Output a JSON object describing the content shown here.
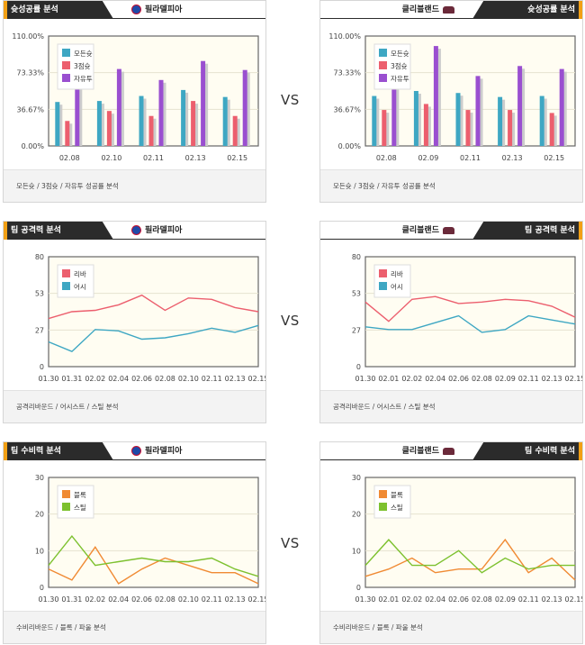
{
  "vs_label": "VS",
  "panels": [
    {
      "title": "슛성공률 분석",
      "team": "필라델피아",
      "side": "left",
      "team_logo": "76ers-logo",
      "footer": "모든슛 / 3점슛 / 자유투 성공률 분석",
      "chart_data": {
        "type": "bar",
        "categories": [
          "02.08",
          "02.10",
          "02.11",
          "02.13",
          "02.15"
        ],
        "ylim": [
          0,
          110
        ],
        "yticks": [
          "0.00%",
          "36.67%",
          "73.33%",
          "110.00%"
        ],
        "series": [
          {
            "name": "모든슛",
            "color": "#3ea7c3",
            "values": [
              44,
              45,
              50,
              56,
              49
            ]
          },
          {
            "name": "3점슛",
            "color": "#ec5f6e",
            "values": [
              25,
              35,
              30,
              45,
              30
            ]
          },
          {
            "name": "자유투",
            "color": "#9a4fd0",
            "values": [
              63,
              77,
              66,
              85,
              76
            ]
          }
        ]
      }
    },
    {
      "title": "슛성공률 분석",
      "team": "클리블랜드",
      "side": "right",
      "team_logo": "cavaliers-logo",
      "footer": "모든슛 / 3점슛 / 자유투 성공률 분석",
      "chart_data": {
        "type": "bar",
        "categories": [
          "02.08",
          "02.09",
          "02.11",
          "02.13",
          "02.15"
        ],
        "ylim": [
          0,
          110
        ],
        "yticks": [
          "0.00%",
          "36.67%",
          "73.33%",
          "110.00%"
        ],
        "series": [
          {
            "name": "모든슛",
            "color": "#3ea7c3",
            "values": [
              50,
              55,
              53,
              49,
              50
            ]
          },
          {
            "name": "3점슛",
            "color": "#ec5f6e",
            "values": [
              36,
              42,
              36,
              36,
              33
            ]
          },
          {
            "name": "자유투",
            "color": "#9a4fd0",
            "values": [
              65,
              100,
              70,
              80,
              77
            ]
          }
        ]
      }
    },
    {
      "title": "팀 공격력 분석",
      "team": "필라델피아",
      "side": "left",
      "team_logo": "76ers-logo",
      "footer": "공격리바운드 / 어시스트 / 스틸 분석",
      "chart_data": {
        "type": "line",
        "categories": [
          "01.30",
          "01.31",
          "02.02",
          "02.04",
          "02.06",
          "02.08",
          "02.10",
          "02.11",
          "02.13",
          "02.15"
        ],
        "ylim": [
          0,
          80
        ],
        "yticks": [
          "0",
          "27",
          "53",
          "80"
        ],
        "series": [
          {
            "name": "리바",
            "color": "#ec5f6e",
            "values": [
              35,
              40,
              41,
              45,
              52,
              41,
              50,
              49,
              43,
              40
            ]
          },
          {
            "name": "어시",
            "color": "#3ea7c3",
            "values": [
              18,
              11,
              27,
              26,
              20,
              21,
              24,
              28,
              25,
              30
            ]
          }
        ]
      }
    },
    {
      "title": "팀 공격력 분석",
      "team": "클리블랜드",
      "side": "right",
      "team_logo": "cavaliers-logo",
      "footer": "공격리바운드 / 어시스트 / 스틸 분석",
      "chart_data": {
        "type": "line",
        "categories": [
          "01.30",
          "02.01",
          "02.02",
          "02.04",
          "02.06",
          "02.08",
          "02.09",
          "02.11",
          "02.13",
          "02.15"
        ],
        "ylim": [
          0,
          80
        ],
        "yticks": [
          "0",
          "27",
          "53",
          "80"
        ],
        "series": [
          {
            "name": "리바",
            "color": "#ec5f6e",
            "values": [
              47,
              33,
              49,
              51,
              46,
              47,
              49,
              48,
              44,
              36
            ]
          },
          {
            "name": "어시",
            "color": "#3ea7c3",
            "values": [
              29,
              27,
              27,
              32,
              37,
              25,
              27,
              37,
              34,
              31
            ]
          }
        ]
      }
    },
    {
      "title": "팀 수비력 분석",
      "team": "필라델피아",
      "side": "left",
      "team_logo": "76ers-logo",
      "footer": "수비리바운드 / 블록 / 파울 분석",
      "chart_data": {
        "type": "line",
        "categories": [
          "01.30",
          "01.31",
          "02.02",
          "02.04",
          "02.06",
          "02.08",
          "02.10",
          "02.11",
          "02.13",
          "02.15"
        ],
        "ylim": [
          0,
          30
        ],
        "yticks": [
          "0",
          "10",
          "20",
          "30"
        ],
        "series": [
          {
            "name": "블록",
            "color": "#f08a33",
            "values": [
              5,
              2,
              11,
              1,
              5,
              8,
              6,
              4,
              4,
              1
            ]
          },
          {
            "name": "스틸",
            "color": "#7dc12f",
            "values": [
              6,
              14,
              6,
              7,
              8,
              7,
              7,
              8,
              5,
              3
            ]
          }
        ]
      }
    },
    {
      "title": "팀 수비력 분석",
      "team": "클리블랜드",
      "side": "right",
      "team_logo": "cavaliers-logo",
      "footer": "수비리바운드 / 블록 / 파울 분석",
      "chart_data": {
        "type": "line",
        "categories": [
          "01.30",
          "02.01",
          "02.02",
          "02.04",
          "02.06",
          "02.08",
          "02.09",
          "02.11",
          "02.13",
          "02.15"
        ],
        "ylim": [
          0,
          30
        ],
        "yticks": [
          "0",
          "10",
          "20",
          "30"
        ],
        "series": [
          {
            "name": "블록",
            "color": "#f08a33",
            "values": [
              3,
              5,
              8,
              4,
              5,
              5,
              13,
              4,
              8,
              2
            ]
          },
          {
            "name": "스틸",
            "color": "#7dc12f",
            "values": [
              6,
              13,
              6,
              6,
              10,
              4,
              8,
              5,
              6,
              6
            ]
          }
        ]
      }
    }
  ]
}
